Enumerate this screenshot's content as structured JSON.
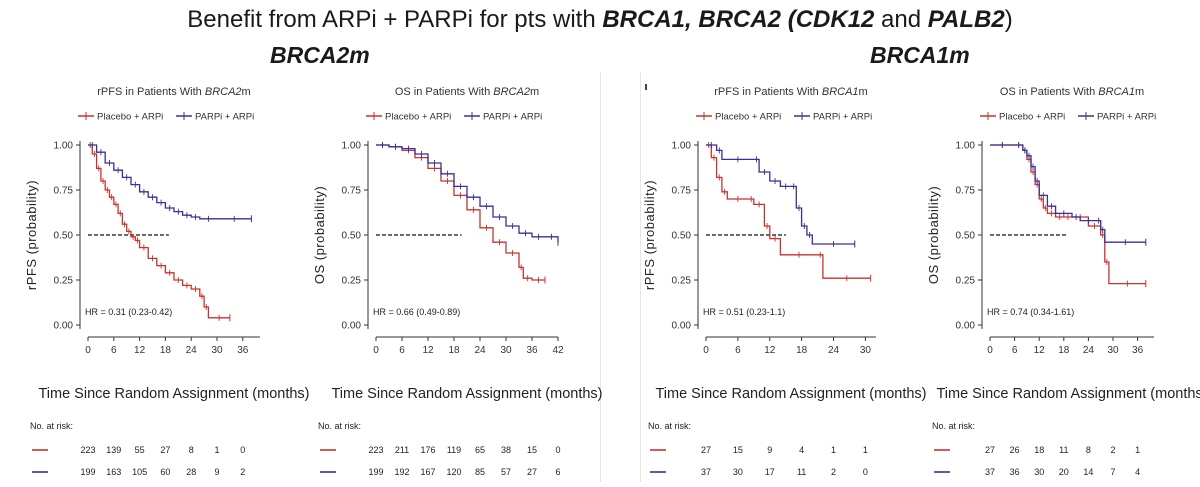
{
  "header": {
    "title_parts": [
      {
        "text": "Benefit from ARPi + PARPi for pts with ",
        "bold": false
      },
      {
        "text": "BRCA1, BRCA2 (CDK12",
        "bold": true
      },
      {
        "text": " and ",
        "bold": false
      },
      {
        "text": "PALB2",
        "bold": true
      },
      {
        "text": ")",
        "bold": false
      }
    ],
    "group_left": "BRCA2m",
    "group_right": "BRCA1m"
  },
  "colors": {
    "placebo": "#c8332f",
    "parpi": "#3c2f96",
    "axis": "#333333",
    "ref": "#111111"
  },
  "chart_data": [
    {
      "id": "rpfs-brca2",
      "type": "line",
      "title_prefix": "rPFS in Patients With ",
      "title_gene": "BRCA2",
      "title_suffix": "m",
      "legend": [
        "Placebo + ARPi",
        "PARPi + ARPi"
      ],
      "ylabel": "rPFS (probability)",
      "xlabel": "Time Since Random Assignment (months)",
      "xlim": [
        0,
        40
      ],
      "ylim": [
        0,
        1
      ],
      "xticks": [
        "0",
        "6",
        "12",
        "18",
        "24",
        "30",
        "36"
      ],
      "yticks": [
        "0.00",
        "0.25",
        "0.50",
        "0.75",
        "1.00"
      ],
      "ref_y": 0.5,
      "hr_label": "HR = 0.31 (0.23-0.42)",
      "risk_label": "No. at risk:",
      "risk_times": [
        0,
        6,
        12,
        18,
        24,
        30,
        36
      ],
      "series": [
        {
          "key": "placebo",
          "label": "Placebo + ARPi",
          "x": [
            0,
            1,
            2,
            3,
            4,
            5,
            6,
            7,
            8,
            9,
            10,
            11,
            12,
            14,
            16,
            18,
            20,
            22,
            24,
            26,
            27,
            28,
            33
          ],
          "y": [
            1.0,
            0.95,
            0.87,
            0.8,
            0.75,
            0.71,
            0.67,
            0.62,
            0.56,
            0.52,
            0.49,
            0.47,
            0.43,
            0.37,
            0.33,
            0.29,
            0.25,
            0.22,
            0.2,
            0.16,
            0.1,
            0.04,
            0.04
          ],
          "risk": [
            "223",
            "139",
            "55",
            "27",
            "8",
            "1",
            "0"
          ]
        },
        {
          "key": "parpi",
          "label": "PARPi + ARPi",
          "x": [
            0,
            2,
            4,
            6,
            8,
            10,
            12,
            14,
            16,
            18,
            20,
            22,
            24,
            26,
            30,
            38
          ],
          "y": [
            1.0,
            0.96,
            0.9,
            0.86,
            0.82,
            0.78,
            0.74,
            0.71,
            0.68,
            0.65,
            0.63,
            0.61,
            0.6,
            0.59,
            0.59,
            0.59
          ],
          "risk": [
            "199",
            "163",
            "105",
            "60",
            "28",
            "9",
            "2"
          ]
        }
      ]
    },
    {
      "id": "os-brca2",
      "type": "line",
      "title_prefix": "OS in Patients With ",
      "title_gene": "BRCA2",
      "title_suffix": "m",
      "legend": [
        "Placebo + ARPi",
        "PARPi + ARPi"
      ],
      "ylabel": "OS (probability)",
      "xlabel": "Time Since Random Assignment (months)",
      "xlim": [
        0,
        42
      ],
      "ylim": [
        0,
        1
      ],
      "xticks": [
        "0",
        "6",
        "12",
        "18",
        "24",
        "30",
        "36",
        "42"
      ],
      "yticks": [
        "0.00",
        "0.25",
        "0.50",
        "0.75",
        "1.00"
      ],
      "ref_y": 0.5,
      "hr_label": "HR = 0.66 (0.49-0.89)",
      "risk_label": "No. at risk:",
      "risk_times": [
        0,
        6,
        12,
        18,
        24,
        30,
        36,
        42
      ],
      "series": [
        {
          "key": "placebo",
          "label": "Placebo + ARPi",
          "x": [
            0,
            3,
            6,
            9,
            12,
            15,
            18,
            21,
            24,
            27,
            30,
            33,
            34,
            36,
            39
          ],
          "y": [
            1.0,
            0.99,
            0.97,
            0.93,
            0.87,
            0.8,
            0.72,
            0.64,
            0.54,
            0.46,
            0.4,
            0.32,
            0.26,
            0.25,
            0.25
          ],
          "risk": [
            "223",
            "211",
            "176",
            "119",
            "65",
            "38",
            "15",
            "0"
          ]
        },
        {
          "key": "parpi",
          "label": "PARPi + ARPi",
          "x": [
            0,
            3,
            6,
            9,
            12,
            15,
            18,
            21,
            24,
            27,
            30,
            33,
            36,
            39,
            42
          ],
          "y": [
            1.0,
            0.99,
            0.98,
            0.95,
            0.9,
            0.84,
            0.77,
            0.71,
            0.66,
            0.6,
            0.55,
            0.51,
            0.49,
            0.49,
            0.46
          ],
          "risk": [
            "199",
            "192",
            "167",
            "120",
            "85",
            "57",
            "27",
            "6"
          ]
        }
      ]
    },
    {
      "id": "rpfs-brca1",
      "type": "line",
      "title_prefix": "rPFS in Patients With ",
      "title_gene": "BRCA1",
      "title_suffix": "m",
      "legend": [
        "Placebo + ARPi",
        "PARPi + ARPi"
      ],
      "ylabel": "rPFS (probability)",
      "xlabel": "Time Since Random Assignment (months)",
      "xlim": [
        0,
        32
      ],
      "ylim": [
        0,
        1
      ],
      "xticks": [
        "0",
        "6",
        "12",
        "18",
        "24",
        "30"
      ],
      "yticks": [
        "0.00",
        "0.25",
        "0.50",
        "0.75",
        "1.00"
      ],
      "ref_y": 0.5,
      "hr_label": "HR = 0.51 (0.23-1.1)",
      "risk_label": "No. at risk:",
      "risk_times": [
        0,
        6,
        12,
        18,
        24,
        30
      ],
      "series": [
        {
          "key": "placebo",
          "label": "Placebo + ARPi",
          "x": [
            0,
            1,
            2,
            3,
            4,
            8,
            9,
            11,
            12,
            14,
            21,
            22,
            31
          ],
          "y": [
            1.0,
            0.93,
            0.82,
            0.74,
            0.7,
            0.7,
            0.67,
            0.55,
            0.48,
            0.39,
            0.39,
            0.26,
            0.26
          ],
          "risk": [
            "27",
            "15",
            "9",
            "4",
            "1",
            "1"
          ]
        },
        {
          "key": "parpi",
          "label": "PARPi + ARPi",
          "x": [
            0,
            2,
            3,
            9,
            10,
            12,
            14,
            16,
            17,
            18,
            19,
            20,
            28
          ],
          "y": [
            1.0,
            0.97,
            0.92,
            0.92,
            0.85,
            0.8,
            0.77,
            0.77,
            0.65,
            0.55,
            0.5,
            0.45,
            0.45
          ],
          "risk": [
            "37",
            "30",
            "17",
            "11",
            "2",
            "0"
          ]
        }
      ]
    },
    {
      "id": "os-brca1",
      "type": "line",
      "title_prefix": "OS in Patients With ",
      "title_gene": "BRCA1",
      "title_suffix": "m",
      "legend": [
        "Placebo + ARPi",
        "PARPi + ARPi"
      ],
      "ylabel": "OS (probability)",
      "xlabel": "Time Since Random Assignment (months)",
      "xlim": [
        0,
        40
      ],
      "ylim": [
        0,
        1
      ],
      "xticks": [
        "0",
        "6",
        "12",
        "18",
        "24",
        "30",
        "36"
      ],
      "yticks": [
        "0.00",
        "0.25",
        "0.50",
        "0.75",
        "1.00"
      ],
      "ref_y": 0.5,
      "hr_label": "HR = 0.74 (0.34-1.61)",
      "risk_label": "No. at risk:",
      "risk_times": [
        0,
        6,
        12,
        18,
        24,
        30,
        36
      ],
      "series": [
        {
          "key": "placebo",
          "label": "Placebo + ARPi",
          "x": [
            0,
            6,
            8,
            9,
            10,
            11,
            12,
            13,
            14,
            16,
            18,
            20,
            24,
            27,
            28,
            29,
            38
          ],
          "y": [
            1.0,
            1.0,
            0.97,
            0.92,
            0.85,
            0.78,
            0.7,
            0.65,
            0.62,
            0.6,
            0.6,
            0.6,
            0.55,
            0.5,
            0.35,
            0.23,
            0.23
          ],
          "risk": [
            "27",
            "26",
            "18",
            "11",
            "8",
            "2",
            "1"
          ]
        },
        {
          "key": "parpi",
          "label": "PARPi + ARPi",
          "x": [
            0,
            6,
            8,
            9,
            10,
            11,
            12,
            14,
            16,
            20,
            22,
            26,
            27,
            28,
            38
          ],
          "y": [
            1.0,
            1.0,
            0.97,
            0.94,
            0.88,
            0.8,
            0.72,
            0.66,
            0.62,
            0.6,
            0.58,
            0.58,
            0.53,
            0.46,
            0.46
          ],
          "risk": [
            "37",
            "36",
            "30",
            "20",
            "14",
            "7",
            "4"
          ]
        }
      ]
    }
  ]
}
